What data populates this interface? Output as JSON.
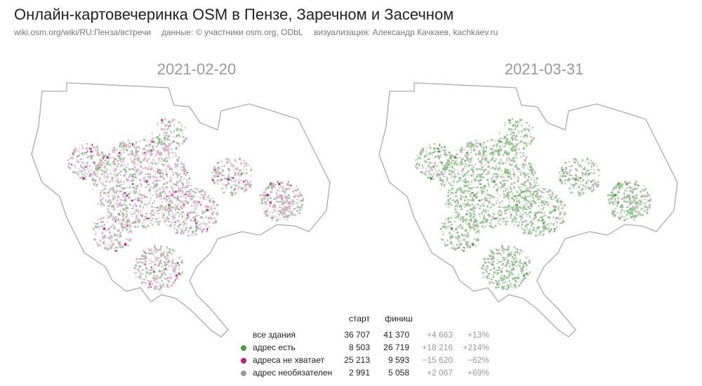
{
  "header": {
    "title": "Онлайн-картовечеринка OSM в Пензе, Заречном и Засечном",
    "subtitle": [
      "wiki.osm.org/wiki/RU:Пенза/встречи",
      "данные: © участники osm.org, ODbL",
      "визуализация: Александр Качкаев, kachkaev.ru"
    ]
  },
  "maps": [
    {
      "date": "2021-02-20"
    },
    {
      "date": "2021-03-31"
    }
  ],
  "table": {
    "header": [
      "старт",
      "финиш"
    ],
    "rows": [
      {
        "label": "все здания",
        "start": "36 707",
        "finish": "41 370",
        "diff": "+4 663",
        "pct": "+13%"
      },
      {
        "label": "адрес есть",
        "start": "8 503",
        "finish": "26 719",
        "diff": "+18 216",
        "pct": "+214%"
      },
      {
        "label": "адреса не хватает",
        "start": "25 213",
        "finish": "9 593",
        "diff": "−15 620",
        "pct": "−62%"
      },
      {
        "label": "адрес необязателен",
        "start": "2 991",
        "finish": "5 058",
        "diff": "+2 067",
        "pct": "+69%"
      }
    ]
  }
}
